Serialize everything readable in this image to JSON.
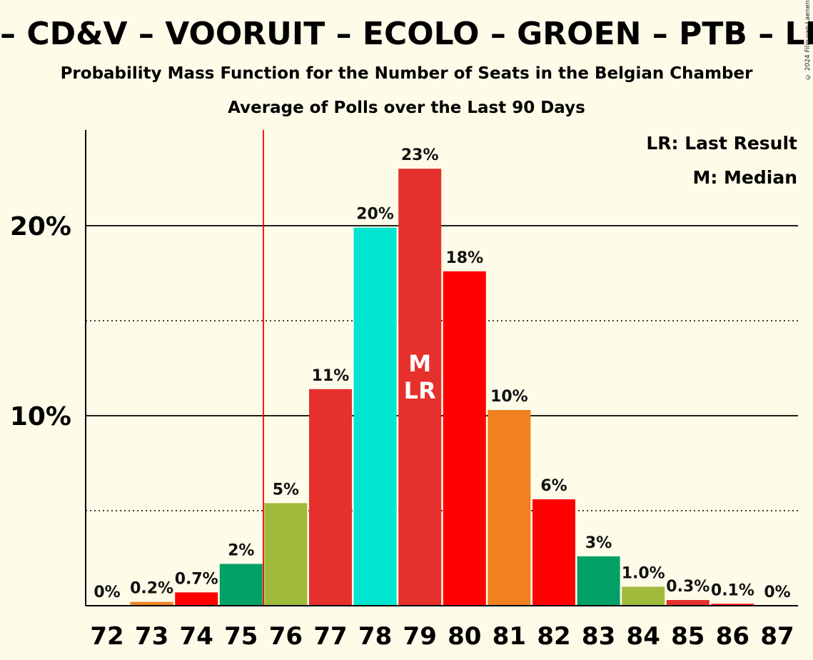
{
  "header": {
    "title": "– CD&V – VOORUIT – ECOLO – GROEN – PTB – LE – PVDA",
    "subtitle": "Probability Mass Function for the Number of Seats in the Belgian Chamber",
    "subtitle2": "Average of Polls over the Last 90 Days",
    "copyright": "© 2024 Filip van Laenen"
  },
  "chart_data": {
    "type": "bar",
    "categories": [
      "72",
      "73",
      "74",
      "75",
      "76",
      "77",
      "78",
      "79",
      "80",
      "81",
      "82",
      "83",
      "84",
      "85",
      "86",
      "87"
    ],
    "values": [
      0,
      0.2,
      0.7,
      2.2,
      5.4,
      11.4,
      19.9,
      23.0,
      17.6,
      10.3,
      5.6,
      2.6,
      1.0,
      0.3,
      0.1,
      0
    ],
    "labels": [
      "0%",
      "0.2%",
      "0.7%",
      "2%",
      "5%",
      "11%",
      "20%",
      "23%",
      "18%",
      "10%",
      "6%",
      "3%",
      "1.0%",
      "0.3%",
      "0.1%",
      "0%"
    ],
    "colors": [
      "#f08020",
      "#f08020",
      "#ff0000",
      "#00a066",
      "#a0bb3c",
      "#e5302c",
      "#00e5d0",
      "#e5302c",
      "#ff0000",
      "#f08020",
      "#ff0000",
      "#00a066",
      "#a0bb3c",
      "#e5302c",
      "#ff0000",
      "#ff0000"
    ],
    "ylim": [
      0,
      25
    ],
    "major_ticks": [
      10,
      20
    ],
    "major_tick_labels": [
      "10%",
      "20%"
    ],
    "minor_ticks": [
      5,
      15
    ],
    "majority_line_x": 75.5,
    "median_category": "79",
    "median_label": "M",
    "last_result_category": "79",
    "last_result_label": "LR",
    "legend": {
      "position": "top-right",
      "lines": [
        "LR: Last Result",
        "M: Median"
      ]
    }
  }
}
